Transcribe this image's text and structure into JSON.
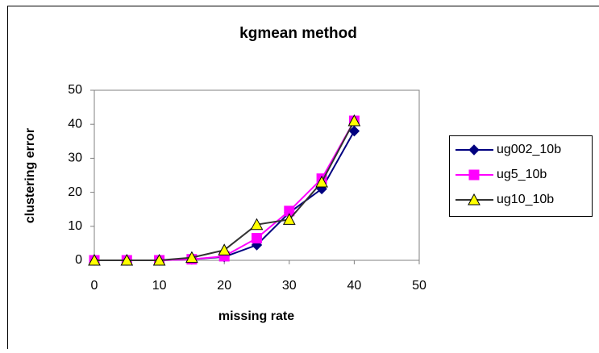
{
  "chart_data": {
    "type": "line",
    "title": "kgmean method",
    "x_label": "missing rate",
    "y_label": "clustering error",
    "x": [
      0,
      5,
      10,
      15,
      20,
      25,
      30,
      35,
      40
    ],
    "series": [
      {
        "name": "ug002_10b",
        "color": "#000080",
        "marker": "diamond",
        "marker_color": "#000080",
        "values": [
          0,
          0,
          0,
          0.3,
          1,
          4.5,
          14,
          21,
          38
        ]
      },
      {
        "name": "ug5_10b",
        "color": "#FF00FF",
        "marker": "square",
        "marker_color": "#FF00FF",
        "values": [
          0,
          0,
          0,
          0.3,
          1.2,
          6.5,
          14.5,
          24,
          41
        ]
      },
      {
        "name": "ug10_10b",
        "color": "#333333",
        "marker": "triangle",
        "marker_color": "#FFFF00",
        "values": [
          0,
          0,
          0,
          0.8,
          3,
          10.5,
          12,
          23,
          41
        ]
      }
    ],
    "xlim": [
      0,
      50
    ],
    "xticks": [
      0,
      10,
      20,
      30,
      40,
      50
    ],
    "ylim": [
      0,
      50
    ],
    "yticks": [
      0,
      10,
      20,
      30,
      40,
      50
    ],
    "grid": false,
    "legend": "right"
  }
}
